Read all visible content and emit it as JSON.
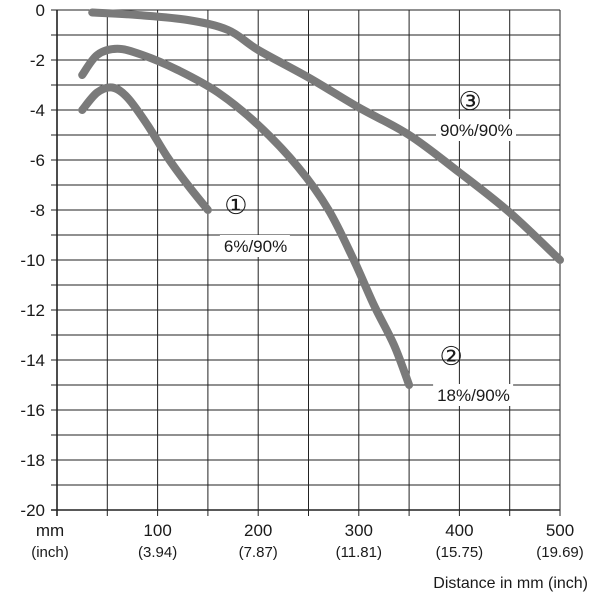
{
  "chart_data": {
    "type": "line",
    "xlabel": "Distance in mm (inch)",
    "x_unit_label": "mm",
    "x_unit_sub_label": "(inch)",
    "xlim": [
      0,
      500
    ],
    "ylim": [
      -20,
      0
    ],
    "grid": true,
    "x_ticks": [
      {
        "value": 100,
        "label": "100",
        "sub": "(3.94)"
      },
      {
        "value": 200,
        "label": "200",
        "sub": "(7.87)"
      },
      {
        "value": 300,
        "label": "300",
        "sub": "(11.81)"
      },
      {
        "value": 400,
        "label": "400",
        "sub": "(15.75)"
      },
      {
        "value": 500,
        "label": "500",
        "sub": "(19.69)"
      }
    ],
    "y_ticks": [
      {
        "value": 0,
        "label": "0"
      },
      {
        "value": -2,
        "label": "-2"
      },
      {
        "value": -4,
        "label": "-4"
      },
      {
        "value": -6,
        "label": "-6"
      },
      {
        "value": -8,
        "label": "-8"
      },
      {
        "value": -10,
        "label": "-10"
      },
      {
        "value": -12,
        "label": "-12"
      },
      {
        "value": -14,
        "label": "-14"
      },
      {
        "value": -16,
        "label": "-16"
      },
      {
        "value": -18,
        "label": "-18"
      },
      {
        "value": -20,
        "label": "-20"
      }
    ],
    "series_color": "#7a7a7a",
    "series": [
      {
        "number": "①",
        "label": "6%/90%",
        "label_at": [
          150,
          -8
        ],
        "points": [
          [
            25,
            -4.0
          ],
          [
            40,
            -3.3
          ],
          [
            55,
            -3.1
          ],
          [
            70,
            -3.5
          ],
          [
            90,
            -4.6
          ],
          [
            110,
            -5.9
          ],
          [
            130,
            -7.0
          ],
          [
            150,
            -8.0
          ]
        ]
      },
      {
        "number": "②",
        "label": "18%/90%",
        "label_at": [
          350,
          -15
        ],
        "points": [
          [
            25,
            -2.6
          ],
          [
            40,
            -1.8
          ],
          [
            60,
            -1.55
          ],
          [
            85,
            -1.8
          ],
          [
            120,
            -2.4
          ],
          [
            160,
            -3.3
          ],
          [
            200,
            -4.6
          ],
          [
            240,
            -6.3
          ],
          [
            270,
            -8.0
          ],
          [
            295,
            -10.0
          ],
          [
            315,
            -11.8
          ],
          [
            335,
            -13.4
          ],
          [
            350,
            -15.0
          ]
        ]
      },
      {
        "number": "③",
        "label": "90%/90%",
        "label_at": [
          500,
          -10
        ],
        "points": [
          [
            35,
            -0.1
          ],
          [
            80,
            -0.2
          ],
          [
            130,
            -0.4
          ],
          [
            170,
            -0.8
          ],
          [
            200,
            -1.6
          ],
          [
            250,
            -2.7
          ],
          [
            300,
            -3.9
          ],
          [
            350,
            -5.0
          ],
          [
            400,
            -6.5
          ],
          [
            450,
            -8.1
          ],
          [
            500,
            -10.0
          ]
        ]
      }
    ]
  }
}
